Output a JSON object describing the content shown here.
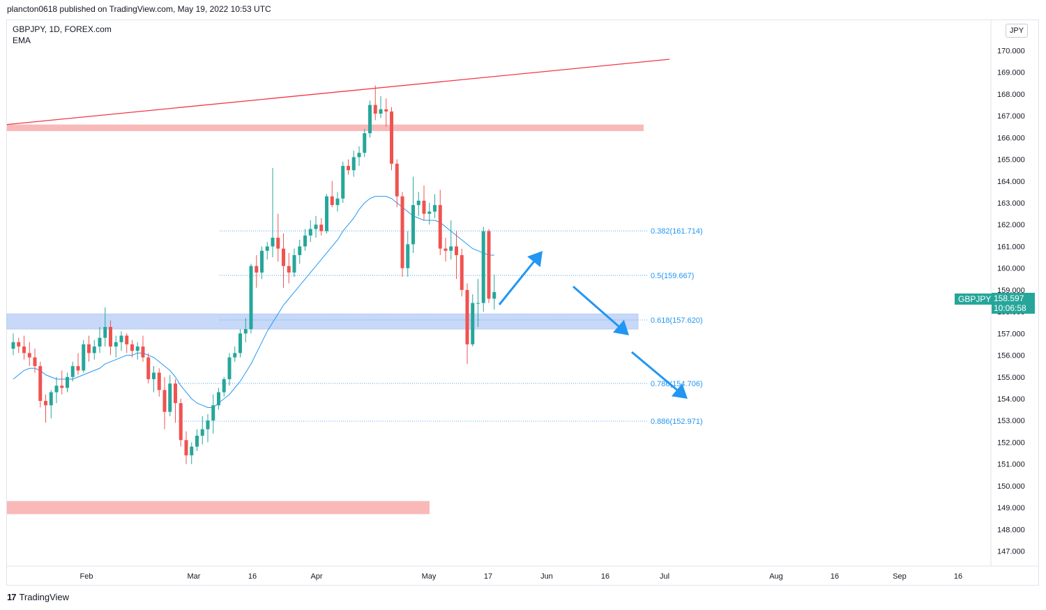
{
  "header": {
    "publish_line": "plancton0618 published on TradingView.com, May 19, 2022 10:53 UTC"
  },
  "legend": {
    "symbol_line": "GBPJPY, 1D, FOREX.com",
    "indicator": "EMA"
  },
  "currency": "JPY",
  "last_price": {
    "symbol": "GBPJPY",
    "price": "158.597",
    "countdown": "10:06:58"
  },
  "footer": {
    "logo_glyph": "17",
    "brand": "TradingView"
  },
  "colors": {
    "up": "#26a69a",
    "down": "#ef5350",
    "ema": "#2196f3",
    "trendline": "#f23645",
    "resistance_zone": "#f7a8a8",
    "support_zone": "#aac4f5",
    "fib": "#2196f3",
    "arrow": "#2196f3"
  },
  "chart_data": {
    "type": "candlestick",
    "title": "GBPJPY, 1D, FOREX.com",
    "ylim": [
      146.5,
      171.5
    ],
    "y_ticks": [
      "147.000",
      "148.000",
      "149.000",
      "150.000",
      "151.000",
      "152.000",
      "153.000",
      "154.000",
      "155.000",
      "156.000",
      "157.000",
      "158.000",
      "159.000",
      "160.000",
      "161.000",
      "162.000",
      "163.000",
      "164.000",
      "165.000",
      "166.000",
      "167.000",
      "168.000",
      "169.000",
      "170.000"
    ],
    "x_ticks": [
      "Feb",
      "Mar",
      "16",
      "Apr",
      "May",
      "17",
      "Jun",
      "16",
      "Jul",
      "Aug",
      "16",
      "Sep",
      "16"
    ],
    "candles": [
      {
        "o": 156.3,
        "h": 157.0,
        "l": 156.0,
        "c": 156.6
      },
      {
        "o": 156.6,
        "h": 156.8,
        "l": 156.1,
        "c": 156.4
      },
      {
        "o": 156.4,
        "h": 156.9,
        "l": 155.8,
        "c": 156.1
      },
      {
        "o": 156.1,
        "h": 156.6,
        "l": 155.5,
        "c": 155.9
      },
      {
        "o": 155.9,
        "h": 156.3,
        "l": 155.2,
        "c": 155.5
      },
      {
        "o": 155.5,
        "h": 155.7,
        "l": 153.6,
        "c": 153.9
      },
      {
        "o": 153.9,
        "h": 154.2,
        "l": 152.9,
        "c": 153.7
      },
      {
        "o": 153.7,
        "h": 154.4,
        "l": 153.1,
        "c": 154.3
      },
      {
        "o": 154.3,
        "h": 155.0,
        "l": 153.8,
        "c": 154.6
      },
      {
        "o": 154.6,
        "h": 155.3,
        "l": 154.2,
        "c": 154.5
      },
      {
        "o": 154.5,
        "h": 155.2,
        "l": 154.3,
        "c": 155.0
      },
      {
        "o": 155.0,
        "h": 155.7,
        "l": 154.8,
        "c": 155.5
      },
      {
        "o": 155.5,
        "h": 156.1,
        "l": 155.1,
        "c": 155.3
      },
      {
        "o": 155.3,
        "h": 156.7,
        "l": 155.2,
        "c": 156.5
      },
      {
        "o": 156.5,
        "h": 156.9,
        "l": 155.7,
        "c": 156.1
      },
      {
        "o": 156.1,
        "h": 156.7,
        "l": 155.8,
        "c": 156.4
      },
      {
        "o": 156.4,
        "h": 157.3,
        "l": 156.1,
        "c": 156.8
      },
      {
        "o": 156.8,
        "h": 158.2,
        "l": 156.4,
        "c": 157.3
      },
      {
        "o": 157.3,
        "h": 157.6,
        "l": 156.0,
        "c": 156.4
      },
      {
        "o": 156.4,
        "h": 156.9,
        "l": 155.9,
        "c": 156.6
      },
      {
        "o": 156.6,
        "h": 157.1,
        "l": 156.2,
        "c": 156.9
      },
      {
        "o": 156.9,
        "h": 157.0,
        "l": 156.1,
        "c": 156.5
      },
      {
        "o": 156.5,
        "h": 156.7,
        "l": 155.9,
        "c": 156.2
      },
      {
        "o": 156.2,
        "h": 156.6,
        "l": 155.8,
        "c": 156.4
      },
      {
        "o": 156.4,
        "h": 156.9,
        "l": 155.7,
        "c": 155.9
      },
      {
        "o": 155.9,
        "h": 156.1,
        "l": 154.7,
        "c": 154.9
      },
      {
        "o": 154.9,
        "h": 155.5,
        "l": 154.3,
        "c": 155.2
      },
      {
        "o": 155.2,
        "h": 155.4,
        "l": 154.1,
        "c": 154.4
      },
      {
        "o": 154.4,
        "h": 155.0,
        "l": 152.6,
        "c": 153.4
      },
      {
        "o": 153.4,
        "h": 155.1,
        "l": 153.2,
        "c": 154.7
      },
      {
        "o": 154.7,
        "h": 154.9,
        "l": 152.9,
        "c": 153.8
      },
      {
        "o": 153.8,
        "h": 154.0,
        "l": 151.8,
        "c": 152.1
      },
      {
        "o": 152.1,
        "h": 152.5,
        "l": 151.0,
        "c": 151.4
      },
      {
        "o": 151.4,
        "h": 152.0,
        "l": 151.0,
        "c": 151.8
      },
      {
        "o": 151.8,
        "h": 152.6,
        "l": 151.6,
        "c": 152.3
      },
      {
        "o": 152.3,
        "h": 153.2,
        "l": 151.9,
        "c": 152.6
      },
      {
        "o": 152.6,
        "h": 153.3,
        "l": 152.0,
        "c": 153.0
      },
      {
        "o": 153.0,
        "h": 154.2,
        "l": 152.4,
        "c": 153.7
      },
      {
        "o": 153.7,
        "h": 154.5,
        "l": 153.5,
        "c": 154.3
      },
      {
        "o": 154.3,
        "h": 155.0,
        "l": 154.1,
        "c": 154.9
      },
      {
        "o": 154.9,
        "h": 156.1,
        "l": 154.6,
        "c": 155.9
      },
      {
        "o": 155.9,
        "h": 156.4,
        "l": 155.7,
        "c": 156.1
      },
      {
        "o": 156.1,
        "h": 157.2,
        "l": 155.9,
        "c": 157.0
      },
      {
        "o": 157.0,
        "h": 157.7,
        "l": 156.6,
        "c": 157.2
      },
      {
        "o": 157.2,
        "h": 160.2,
        "l": 157.0,
        "c": 160.1
      },
      {
        "o": 160.1,
        "h": 160.6,
        "l": 159.1,
        "c": 159.8
      },
      {
        "o": 159.8,
        "h": 161.0,
        "l": 159.5,
        "c": 160.8
      },
      {
        "o": 160.8,
        "h": 161.2,
        "l": 160.4,
        "c": 161.0
      },
      {
        "o": 161.0,
        "h": 164.6,
        "l": 160.5,
        "c": 161.4
      },
      {
        "o": 161.4,
        "h": 162.5,
        "l": 160.3,
        "c": 160.9
      },
      {
        "o": 160.9,
        "h": 161.6,
        "l": 159.1,
        "c": 160.1
      },
      {
        "o": 160.1,
        "h": 160.7,
        "l": 159.3,
        "c": 159.8
      },
      {
        "o": 159.8,
        "h": 160.9,
        "l": 159.6,
        "c": 160.6
      },
      {
        "o": 160.6,
        "h": 161.3,
        "l": 160.2,
        "c": 161.0
      },
      {
        "o": 161.0,
        "h": 161.8,
        "l": 160.8,
        "c": 161.5
      },
      {
        "o": 161.5,
        "h": 162.2,
        "l": 161.2,
        "c": 161.8
      },
      {
        "o": 161.8,
        "h": 162.4,
        "l": 161.4,
        "c": 162.0
      },
      {
        "o": 162.0,
        "h": 162.3,
        "l": 161.5,
        "c": 161.7
      },
      {
        "o": 161.7,
        "h": 163.4,
        "l": 161.6,
        "c": 163.3
      },
      {
        "o": 163.3,
        "h": 164.0,
        "l": 162.8,
        "c": 162.9
      },
      {
        "o": 162.9,
        "h": 163.5,
        "l": 162.6,
        "c": 163.2
      },
      {
        "o": 163.2,
        "h": 164.9,
        "l": 163.0,
        "c": 164.7
      },
      {
        "o": 164.7,
        "h": 165.0,
        "l": 164.3,
        "c": 164.5
      },
      {
        "o": 164.5,
        "h": 165.4,
        "l": 164.2,
        "c": 165.1
      },
      {
        "o": 165.1,
        "h": 165.6,
        "l": 164.7,
        "c": 165.3
      },
      {
        "o": 165.3,
        "h": 166.4,
        "l": 165.1,
        "c": 166.2
      },
      {
        "o": 166.2,
        "h": 167.7,
        "l": 166.0,
        "c": 167.5
      },
      {
        "o": 167.5,
        "h": 168.4,
        "l": 166.8,
        "c": 167.1
      },
      {
        "o": 167.1,
        "h": 167.9,
        "l": 166.9,
        "c": 167.3
      },
      {
        "o": 167.3,
        "h": 167.8,
        "l": 166.5,
        "c": 167.2
      },
      {
        "o": 167.2,
        "h": 167.4,
        "l": 164.5,
        "c": 164.8
      },
      {
        "o": 164.8,
        "h": 165.0,
        "l": 162.8,
        "c": 163.3
      },
      {
        "o": 163.3,
        "h": 163.5,
        "l": 159.6,
        "c": 160.0
      },
      {
        "o": 160.0,
        "h": 161.7,
        "l": 159.6,
        "c": 161.1
      },
      {
        "o": 161.1,
        "h": 164.2,
        "l": 160.7,
        "c": 162.9
      },
      {
        "o": 162.9,
        "h": 163.5,
        "l": 162.4,
        "c": 163.1
      },
      {
        "o": 163.1,
        "h": 163.8,
        "l": 162.2,
        "c": 162.5
      },
      {
        "o": 162.5,
        "h": 163.0,
        "l": 162.0,
        "c": 162.6
      },
      {
        "o": 162.6,
        "h": 163.4,
        "l": 162.3,
        "c": 162.9
      },
      {
        "o": 162.9,
        "h": 163.6,
        "l": 160.6,
        "c": 160.9
      },
      {
        "o": 160.9,
        "h": 161.4,
        "l": 160.3,
        "c": 160.8
      },
      {
        "o": 160.8,
        "h": 162.2,
        "l": 160.4,
        "c": 161.0
      },
      {
        "o": 161.0,
        "h": 161.7,
        "l": 159.5,
        "c": 160.6
      },
      {
        "o": 160.6,
        "h": 160.9,
        "l": 158.7,
        "c": 159.0
      },
      {
        "o": 159.0,
        "h": 159.3,
        "l": 155.6,
        "c": 156.5
      },
      {
        "o": 156.5,
        "h": 158.8,
        "l": 156.4,
        "c": 158.4
      },
      {
        "o": 158.4,
        "h": 159.5,
        "l": 157.3,
        "c": 158.4
      },
      {
        "o": 158.4,
        "h": 161.9,
        "l": 158.0,
        "c": 161.7
      },
      {
        "o": 161.7,
        "h": 161.8,
        "l": 158.4,
        "c": 158.6
      },
      {
        "o": 158.6,
        "h": 159.7,
        "l": 158.1,
        "c": 158.9
      }
    ],
    "ema": [
      154.9,
      155.1,
      155.3,
      155.4,
      155.4,
      155.3,
      155.1,
      155.0,
      154.9,
      154.9,
      154.9,
      154.9,
      155.0,
      155.1,
      155.2,
      155.3,
      155.4,
      155.6,
      155.7,
      155.8,
      155.9,
      156.0,
      156.0,
      156.1,
      156.1,
      156.0,
      155.9,
      155.7,
      155.5,
      155.3,
      155.0,
      154.6,
      154.3,
      154.0,
      153.8,
      153.7,
      153.6,
      153.6,
      153.8,
      154.0,
      154.2,
      154.5,
      154.8,
      155.2,
      155.6,
      156.1,
      156.6,
      157.1,
      157.5,
      157.9,
      158.3,
      158.6,
      158.9,
      159.2,
      159.5,
      159.8,
      160.1,
      160.4,
      160.7,
      161.0,
      161.3,
      161.7,
      162.0,
      162.3,
      162.7,
      163.0,
      163.2,
      163.3,
      163.3,
      163.3,
      163.2,
      163.0,
      162.8,
      162.6,
      162.4,
      162.3,
      162.2,
      162.2,
      162.2,
      162.1,
      161.9,
      161.7,
      161.5,
      161.3,
      161.1,
      160.9,
      160.8,
      160.7,
      160.6,
      160.6
    ],
    "trendline": [
      [
        0,
        166.6
      ],
      [
        127,
        169.6
      ]
    ],
    "resistance_zone": [
      166.3,
      166.6
    ],
    "support_zone": [
      157.2,
      157.9
    ],
    "lower_zone": [
      148.7,
      149.3
    ],
    "fib_levels": [
      {
        "label": "0.382(161.714)",
        "value": 161.714
      },
      {
        "label": "0.5(159.667)",
        "value": 159.667
      },
      {
        "label": "0.618(157.620)",
        "value": 157.62
      },
      {
        "label": "0.786(154.706)",
        "value": 154.706
      },
      {
        "label": "0.886(152.971)",
        "value": 152.971
      }
    ]
  }
}
